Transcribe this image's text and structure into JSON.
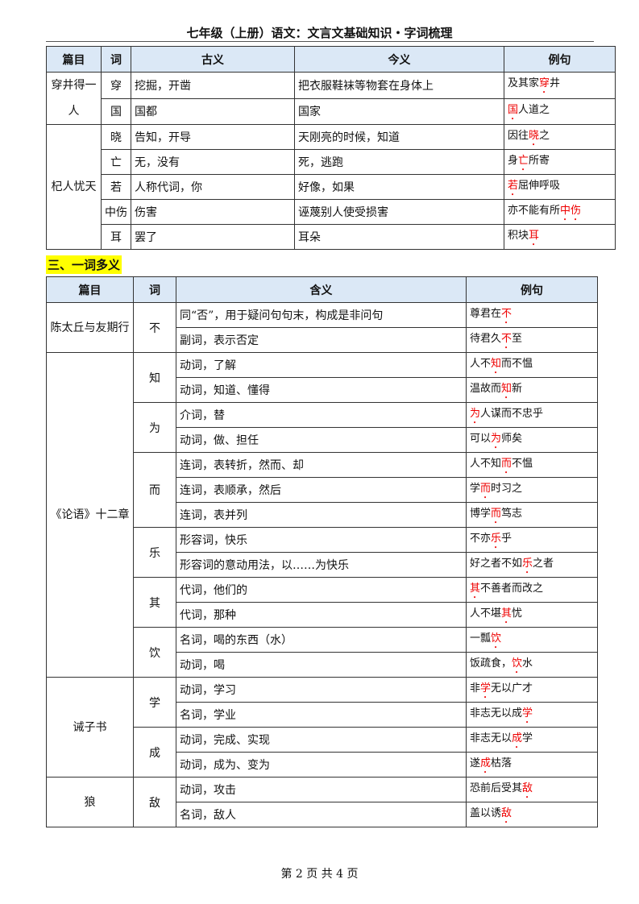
{
  "header": {
    "title": "七年级（上册）语文：文言文基础知识・字词梳理"
  },
  "table1": {
    "headers": [
      "篇目",
      "词",
      "古义",
      "今义",
      "例句"
    ],
    "groups": [
      {
        "title": "穿井得一人",
        "rows": [
          {
            "word": "穿",
            "old": "挖掘，开凿",
            "new": "把衣服鞋袜等物套在身体上",
            "example": [
              "及其家",
              "穿",
              "井"
            ]
          },
          {
            "word": "国",
            "old": "国都",
            "new": "国家",
            "example": [
              "",
              "国",
              "人道之"
            ]
          }
        ]
      },
      {
        "title": "杞人忧天",
        "rows": [
          {
            "word": "晓",
            "old": "告知，开导",
            "new": "天刚亮的时候，知道",
            "example": [
              "因往",
              "晓",
              "之"
            ]
          },
          {
            "word": "亡",
            "old": "无，没有",
            "new": "死，逃跑",
            "example": [
              "身",
              "亡",
              "所寄"
            ]
          },
          {
            "word": "若",
            "old": "人称代词，你",
            "new": "好像，如果",
            "example": [
              "",
              "若",
              "屈伸呼吸"
            ]
          },
          {
            "word": "中伤",
            "old": "伤害",
            "new": "诬蔑别人使受损害",
            "example": [
              "亦不能有所",
              "中伤",
              ""
            ]
          },
          {
            "word": "耳",
            "old": "罢了",
            "new": "耳朵",
            "example": [
              "积块",
              "耳",
              ""
            ]
          }
        ]
      }
    ]
  },
  "section_heading": "三、一词多义",
  "table2": {
    "headers": [
      "篇目",
      "词",
      "含义",
      "例句"
    ],
    "groups": [
      {
        "title": "陈太丘与友期行",
        "words": [
          {
            "word": "不",
            "senses": [
              {
                "meaning": "同“否”，用于疑问句句末，构成是非问句",
                "example": [
                  "尊君在",
                  "不",
                  ""
                ]
              },
              {
                "meaning": "副词，表示否定",
                "example": [
                  "待君久",
                  "不",
                  "至"
                ]
              }
            ]
          }
        ]
      },
      {
        "title": "《论语》十二章",
        "words": [
          {
            "word": "知",
            "senses": [
              {
                "meaning": "动词，了解",
                "example": [
                  "人不",
                  "知",
                  "而不愠"
                ]
              },
              {
                "meaning": "动词，知道、懂得",
                "example": [
                  "温故而",
                  "知",
                  "新"
                ]
              }
            ]
          },
          {
            "word": "为",
            "senses": [
              {
                "meaning": "介词，替",
                "example": [
                  "",
                  "为",
                  "人谋而不忠乎"
                ]
              },
              {
                "meaning": "动词，做、担任",
                "example": [
                  "可以",
                  "为",
                  "师矣"
                ]
              }
            ]
          },
          {
            "word": "而",
            "senses": [
              {
                "meaning": "连词，表转折，然而、却",
                "example": [
                  "人不知",
                  "而",
                  "不愠"
                ]
              },
              {
                "meaning": "连词，表顺承，然后",
                "example": [
                  "学",
                  "而",
                  "时习之"
                ]
              },
              {
                "meaning": "连词，表并列",
                "example": [
                  "博学",
                  "而",
                  "笃志"
                ]
              }
            ]
          },
          {
            "word": "乐",
            "senses": [
              {
                "meaning": "形容词，快乐",
                "example": [
                  "不亦",
                  "乐",
                  "乎"
                ]
              },
              {
                "meaning": "形容词的意动用法，以……为快乐",
                "example": [
                  "好之者不如",
                  "乐",
                  "之者"
                ]
              }
            ]
          },
          {
            "word": "其",
            "senses": [
              {
                "meaning": "代词，他们的",
                "example": [
                  "",
                  "其",
                  "不善者而改之"
                ]
              },
              {
                "meaning": "代词，那种",
                "example": [
                  "人不堪",
                  "其",
                  "忧"
                ]
              }
            ]
          },
          {
            "word": "饮",
            "senses": [
              {
                "meaning": "名词，喝的东西（水）",
                "example": [
                  "一瓢",
                  "饮",
                  ""
                ]
              },
              {
                "meaning": "动词，喝",
                "example": [
                  "饭疏食，",
                  "饮",
                  "水"
                ]
              }
            ]
          }
        ]
      },
      {
        "title": "诫子书",
        "words": [
          {
            "word": "学",
            "senses": [
              {
                "meaning": "动词，学习",
                "example": [
                  "非",
                  "学",
                  "无以广才"
                ]
              },
              {
                "meaning": "名词，学业",
                "example": [
                  "非志无以成",
                  "学",
                  ""
                ]
              }
            ]
          },
          {
            "word": "成",
            "senses": [
              {
                "meaning": "动词，完成、实现",
                "example": [
                  "非志无以",
                  "成",
                  "学"
                ]
              },
              {
                "meaning": "动词，成为、变为",
                "example": [
                  "遂",
                  "成",
                  "枯落"
                ]
              }
            ]
          }
        ]
      },
      {
        "title": "狼",
        "words": [
          {
            "word": "敌",
            "senses": [
              {
                "meaning": "动词，攻击",
                "example": [
                  "恐前后受其",
                  "敌",
                  ""
                ]
              },
              {
                "meaning": "名词，敌人",
                "example": [
                  "盖以诱",
                  "敌",
                  ""
                ]
              }
            ]
          }
        ]
      }
    ]
  },
  "footer": {
    "page_text": "第 2 页 共 4 页"
  }
}
